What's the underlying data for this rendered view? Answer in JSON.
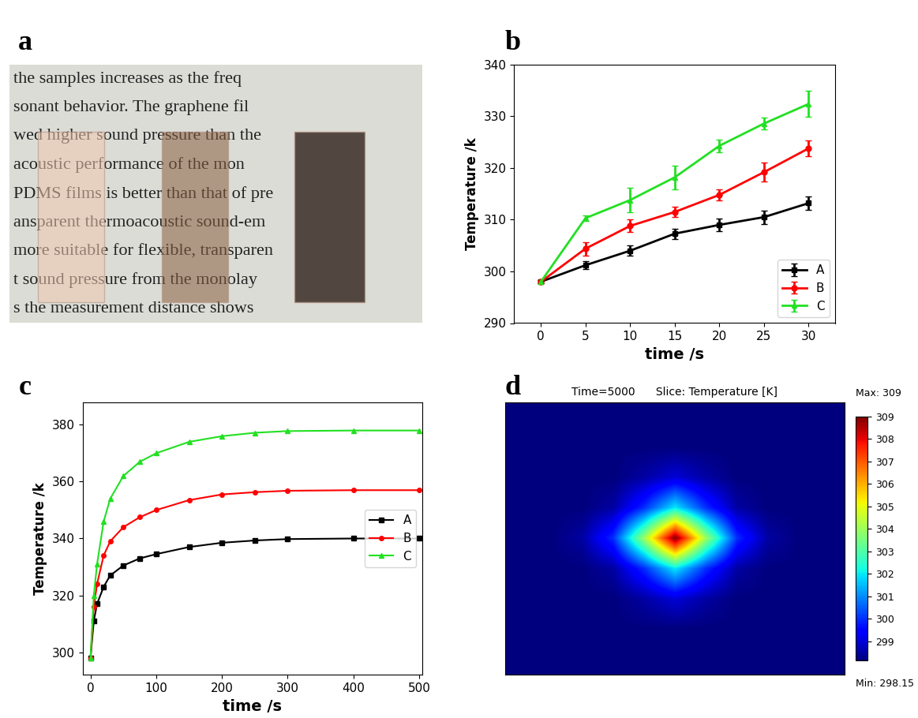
{
  "chart_data": [
    {
      "type": "image",
      "panel": "a",
      "text_lines": [
        "the samples increases as the freq",
        "sonant behavior. The graphene fil",
        "wed higher sound pressure than the",
        "acoustic performance of the mon",
        "PDMS films is better than that of pre",
        "ansparent thermoacoustic sound-em",
        "more suitable for flexible, transparen",
        "t sound pressure from the monolay",
        "s the measurement distance shows"
      ]
    },
    {
      "type": "line",
      "panel": "b",
      "x_label": "time /s",
      "y_label": "Temperature /k",
      "x": [
        0,
        5,
        10,
        15,
        20,
        25,
        30
      ],
      "xlim": [
        -3,
        33
      ],
      "xticks": [
        0,
        5,
        10,
        15,
        20,
        25,
        30
      ],
      "ylim": [
        290,
        340
      ],
      "yticks": [
        290,
        300,
        310,
        320,
        330,
        340
      ],
      "legend": "lower right",
      "series": [
        {
          "name": "A",
          "color": "#000000",
          "marker": "square",
          "line_style": "solid",
          "values": [
            298,
            301.2,
            304,
            307.3,
            309,
            310.5,
            313.2
          ],
          "errors": [
            0.3,
            0.8,
            1.0,
            1.0,
            1.2,
            1.3,
            1.3
          ]
        },
        {
          "name": "B",
          "color": "#ff0000",
          "marker": "circle",
          "line_style": "solid",
          "values": [
            298,
            304.4,
            308.8,
            311.5,
            314.8,
            319.2,
            323.8
          ],
          "errors": [
            0.3,
            1.3,
            1.2,
            1.0,
            1.0,
            1.8,
            1.5
          ]
        },
        {
          "name": "C",
          "color": "#22e022",
          "marker": "triangle",
          "line_style": "solid",
          "values": [
            298,
            310.3,
            313.8,
            318.2,
            324.3,
            328.6,
            332.4
          ],
          "errors": [
            0.3,
            0.6,
            2.3,
            2.3,
            1.2,
            1.2,
            2.5
          ]
        }
      ]
    },
    {
      "type": "line",
      "panel": "c",
      "x_label": "time /s",
      "y_label": "Temperature /k",
      "x": [
        0,
        5,
        10,
        20,
        30,
        50,
        75,
        100,
        150,
        200,
        250,
        300,
        400,
        500
      ],
      "xlim": [
        -12,
        505
      ],
      "xticks": [
        0,
        100,
        200,
        300,
        400,
        500
      ],
      "ylim": [
        292,
        388
      ],
      "yticks": [
        300,
        320,
        340,
        360,
        380
      ],
      "legend": "center right",
      "series": [
        {
          "name": "A",
          "color": "#000000",
          "marker": "square",
          "line_style": "solid",
          "values": [
            298,
            311,
            317,
            323,
            327,
            330.5,
            333,
            334.5,
            337,
            338.5,
            339.3,
            339.8,
            340,
            340
          ]
        },
        {
          "name": "B",
          "color": "#ff0000",
          "marker": "circle",
          "line_style": "solid",
          "values": [
            298,
            316,
            324,
            334,
            339,
            344,
            347.5,
            350,
            353.5,
            355.5,
            356.3,
            356.8,
            357,
            357
          ]
        },
        {
          "name": "C",
          "color": "#22e022",
          "marker": "triangle",
          "line_style": "solid",
          "values": [
            298,
            320,
            331,
            346,
            354,
            362,
            367,
            370,
            374,
            376,
            377.2,
            377.8,
            378,
            378
          ]
        }
      ]
    },
    {
      "type": "heatmap",
      "panel": "d",
      "title": "Time=5000",
      "subtitle": "Slice: Temperature [K]",
      "color_range": [
        298.15,
        309
      ],
      "colorbar_ticks": [
        299,
        300,
        301,
        302,
        303,
        304,
        305,
        306,
        307,
        308,
        309
      ],
      "max_text": "Max: 309",
      "min_text": "Min: 298.15",
      "cells": [
        [
          298.15,
          298.15,
          298.15,
          298.15,
          298.15,
          298.15,
          298.15,
          298.15,
          298.15,
          298.15,
          298.15
        ],
        [
          298.15,
          298.15,
          298.15,
          298.15,
          298.15,
          298.15,
          298.15,
          298.15,
          298.15,
          298.15,
          298.15
        ],
        [
          298.15,
          298.15,
          298.15,
          298.15,
          298.5,
          299,
          298.5,
          298.15,
          298.15,
          298.15,
          298.15
        ],
        [
          298.15,
          298.15,
          298.15,
          298.5,
          300,
          302,
          300,
          298.5,
          298.15,
          298.15,
          298.15
        ],
        [
          298.15,
          298.15,
          298.5,
          300,
          304,
          309,
          304,
          300,
          298.5,
          298.15,
          298.15
        ],
        [
          298.15,
          298.15,
          298.15,
          298.5,
          300,
          302,
          300,
          298.5,
          298.15,
          298.15,
          298.15
        ],
        [
          298.15,
          298.15,
          298.15,
          298.15,
          298.5,
          299,
          298.5,
          298.15,
          298.15,
          298.15,
          298.15
        ],
        [
          298.15,
          298.15,
          298.15,
          298.15,
          298.15,
          298.15,
          298.15,
          298.15,
          298.15,
          298.15,
          298.15
        ],
        [
          298.15,
          298.15,
          298.15,
          298.15,
          298.15,
          298.15,
          298.15,
          298.15,
          298.15,
          298.15,
          298.15
        ]
      ]
    }
  ]
}
